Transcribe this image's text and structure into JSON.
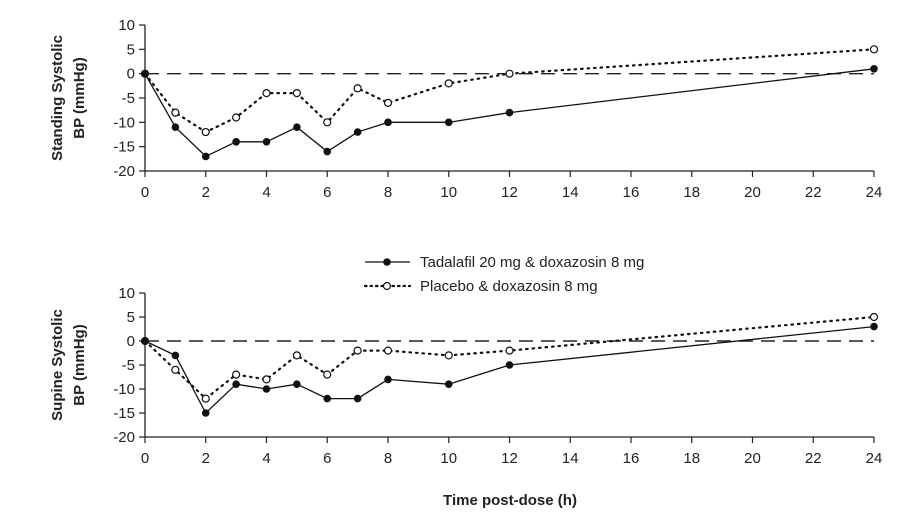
{
  "chart_data": [
    {
      "type": "line",
      "ylabel": [
        "Standing Systolic",
        "BP (mmHg)"
      ],
      "xlabel": "",
      "xlim": [
        0,
        24
      ],
      "ylim": [
        -20,
        10
      ],
      "xticks": [
        0,
        2,
        4,
        6,
        8,
        10,
        12,
        14,
        16,
        18,
        20,
        22,
        24
      ],
      "yticks": [
        10,
        5,
        0,
        -5,
        -10,
        -15,
        -20
      ],
      "reference_line": 0,
      "x": [
        0,
        1,
        2,
        3,
        4,
        5,
        6,
        7,
        8,
        10,
        12,
        24
      ],
      "series": [
        {
          "name": "Tadalafil 20 mg & doxazosin 8 mg",
          "style": "solid-filled",
          "values": [
            0,
            -11,
            -17,
            -14,
            -14,
            -11,
            -16,
            -12,
            -10,
            -10,
            -8,
            1
          ]
        },
        {
          "name": "Placebo & doxazosin 8 mg",
          "style": "dotted-open",
          "values": [
            0,
            -8,
            -12,
            -9,
            -4,
            -4,
            -10,
            -3,
            -6,
            -2,
            0,
            5
          ]
        }
      ]
    },
    {
      "type": "line",
      "ylabel": [
        "Supine Systolic",
        "BP (mmHg)"
      ],
      "xlabel": "Time post-dose (h)",
      "xlim": [
        0,
        24
      ],
      "ylim": [
        -20,
        10
      ],
      "xticks": [
        0,
        2,
        4,
        6,
        8,
        10,
        12,
        14,
        16,
        18,
        20,
        22,
        24
      ],
      "yticks": [
        10,
        5,
        0,
        -5,
        -10,
        -15,
        -20
      ],
      "reference_line": 0,
      "x": [
        0,
        1,
        2,
        3,
        4,
        5,
        6,
        7,
        8,
        10,
        12,
        24
      ],
      "series": [
        {
          "name": "Tadalafil 20 mg & doxazosin 8 mg",
          "style": "solid-filled",
          "values": [
            0,
            -3,
            -15,
            -9,
            -10,
            -9,
            -12,
            -12,
            -8,
            -9,
            -5,
            3
          ]
        },
        {
          "name": "Placebo & doxazosin 8 mg",
          "style": "dotted-open",
          "values": [
            0,
            -6,
            -12,
            -7,
            -8,
            -3,
            -7,
            -2,
            -2,
            -3,
            -2,
            5
          ]
        }
      ]
    }
  ],
  "legend": {
    "placement": "between panels, center-right",
    "items": [
      "Tadalafil 20 mg & doxazosin 8 mg",
      "Placebo & doxazosin 8 mg"
    ]
  }
}
